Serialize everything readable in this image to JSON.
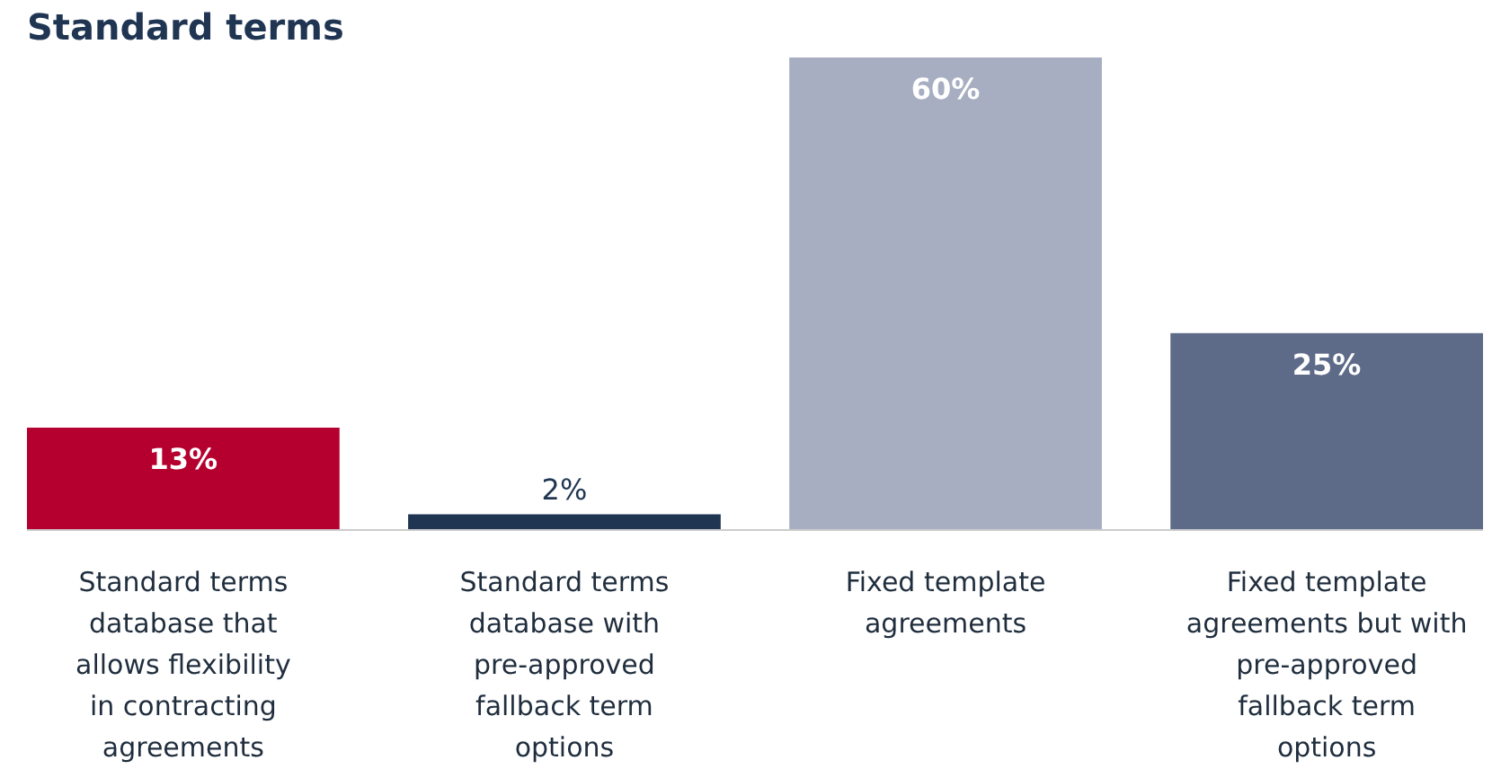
{
  "chart_data": {
    "type": "bar",
    "title": "Standard terms",
    "categories": [
      "Standard terms database that allows flexibility in contracting agreements",
      "Standard terms database with pre-approved fallback term options",
      "Fixed template agreements",
      "Fixed template agreements but with pre-approved fallback term options"
    ],
    "values": [
      13,
      2,
      60,
      25
    ],
    "colors": [
      "#b5002f",
      "#1f3552",
      "#a7aec1",
      "#5d6b89"
    ],
    "value_labels": [
      "13%",
      "2%",
      "60%",
      "25%"
    ]
  }
}
